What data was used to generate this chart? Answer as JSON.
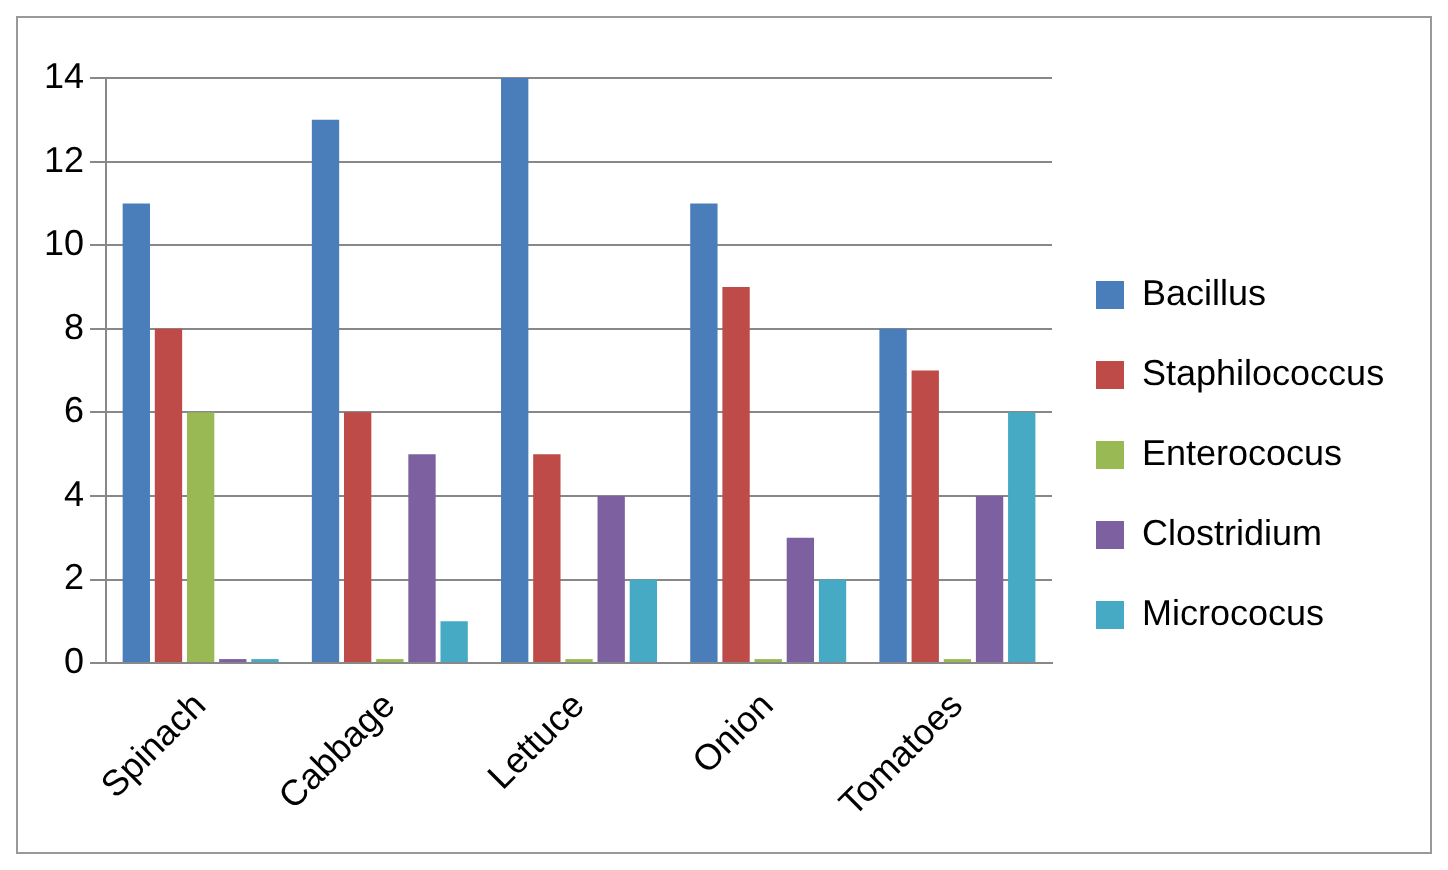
{
  "chart_data": {
    "type": "bar",
    "categories": [
      "Spinach",
      "Cabbage",
      "Lettuce",
      "Onion",
      "Tomatoes"
    ],
    "series": [
      {
        "name": "Bacillus",
        "color": "#4a7ebb",
        "values": [
          11,
          13,
          14,
          11,
          8
        ]
      },
      {
        "name": "Staphilococcus",
        "color": "#be4b48",
        "values": [
          8,
          6,
          5,
          9,
          7
        ]
      },
      {
        "name": "Enterococus",
        "color": "#98b954",
        "values": [
          6,
          0,
          0,
          0,
          0
        ]
      },
      {
        "name": "Clostridium",
        "color": "#7d60a0",
        "values": [
          0,
          5,
          4,
          3,
          4
        ]
      },
      {
        "name": "Micrococus",
        "color": "#46aac5",
        "values": [
          0,
          1,
          2,
          2,
          6
        ]
      }
    ],
    "ylim": [
      0,
      14
    ],
    "yticks": [
      0,
      2,
      4,
      6,
      8,
      10,
      12,
      14
    ],
    "grid": "y",
    "legend": "right"
  }
}
